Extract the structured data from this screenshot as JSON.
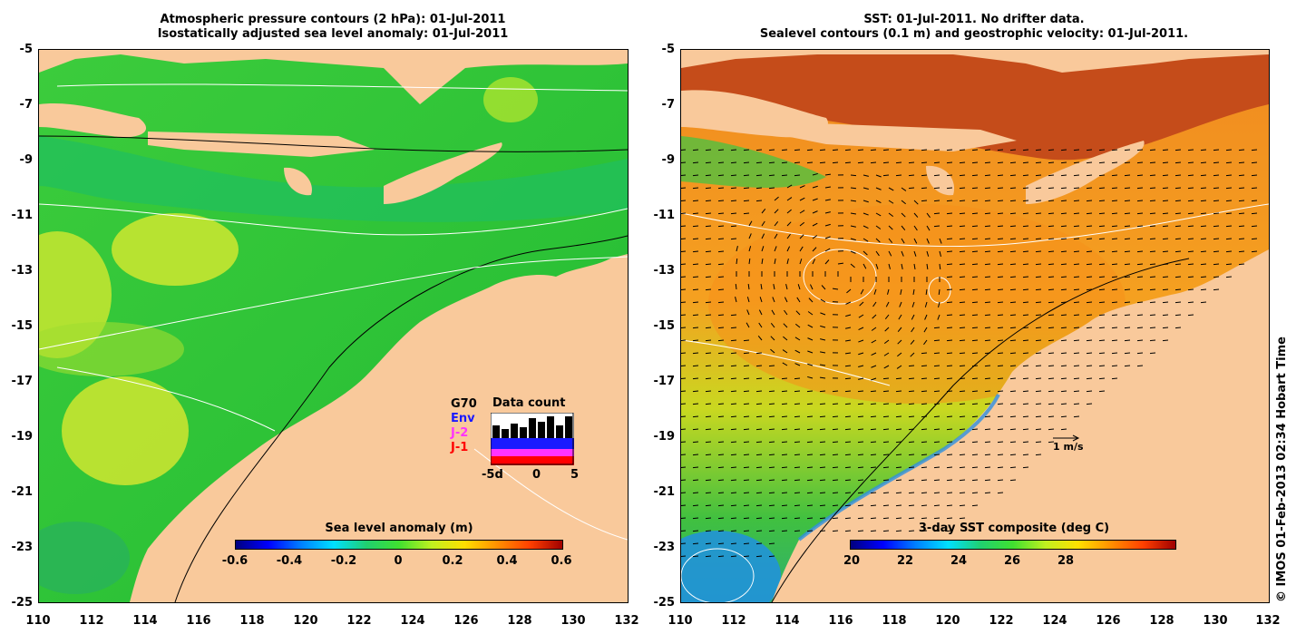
{
  "left_panel": {
    "title_line1": "Atmospheric pressure contours (2 hPa): 01-Jul-2011",
    "title_line2": "Isostatically adjusted sea level anomaly: 01-Jul-2011",
    "colorbar": {
      "title": "Sea level anomaly (m)",
      "ticks": [
        "-0.6",
        "-0.4",
        "-0.2",
        "0",
        "0.2",
        "0.4",
        "0.6"
      ]
    },
    "data_count": {
      "title": "Data count",
      "legend": [
        {
          "label": "G70",
          "color": "#000000"
        },
        {
          "label": "Env",
          "color": "#1a1aff"
        },
        {
          "label": "J-2",
          "color": "#ff33ff"
        },
        {
          "label": "J-1",
          "color": "#ff0000"
        }
      ],
      "axis_labels": [
        "-5d",
        "0",
        "5"
      ]
    }
  },
  "right_panel": {
    "title_line1": "SST: 01-Jul-2011. No drifter data.",
    "title_line2": "Sealevel contours (0.1 m) and geostrophic velocity: 01-Jul-2011.",
    "colorbar": {
      "title": "3-day SST composite (deg C)",
      "ticks": [
        "20",
        "22",
        "24",
        "26",
        "28"
      ]
    },
    "velocity_scale_label": "1 m/s"
  },
  "axes": {
    "y_ticks": [
      "-5",
      "-7",
      "-9",
      "-11",
      "-13",
      "-15",
      "-17",
      "-19",
      "-21",
      "-23",
      "-25"
    ],
    "x_ticks": [
      "110",
      "112",
      "114",
      "116",
      "118",
      "120",
      "122",
      "124",
      "126",
      "128",
      "130",
      "132"
    ]
  },
  "credit": "© IMOS 01-Feb-2013 02:34 Hobart Time",
  "colors": {
    "land": "#f9c99b",
    "ocean_green": "#2ecc2e",
    "sst_orange": "#f5a623",
    "sst_red": "#c0392b"
  }
}
